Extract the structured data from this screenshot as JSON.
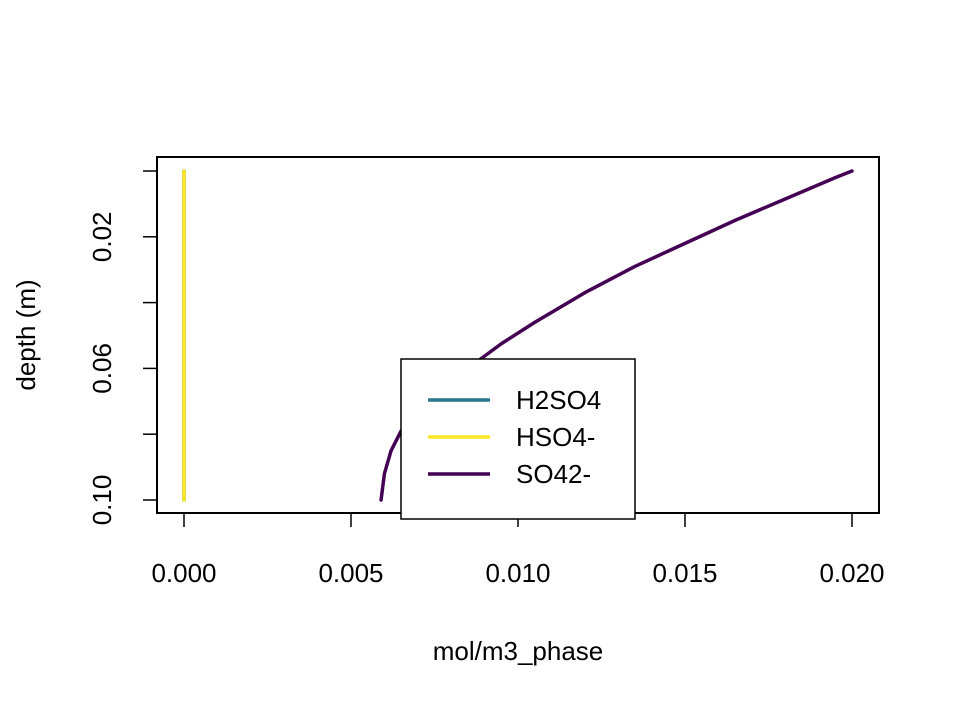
{
  "chart_data": {
    "type": "line",
    "title": "",
    "xlabel": "mol/m3_phase",
    "ylabel": "depth (m)",
    "xlim": [
      0.0,
      0.02
    ],
    "ylim": [
      0.1,
      0.0
    ],
    "y_inverted": true,
    "x_ticks": [
      "0.000",
      "0.005",
      "0.010",
      "0.015",
      "0.020"
    ],
    "x_tick_values": [
      0.0,
      0.005,
      0.01,
      0.015,
      0.02
    ],
    "y_ticks": [
      "0.02",
      "0.06",
      "0.10"
    ],
    "y_tick_values": [
      0.02,
      0.06,
      0.1
    ],
    "y_minor_tick_values": [
      0.0,
      0.04,
      0.08
    ],
    "grid": false,
    "legend_position": "bottom-center",
    "series": [
      {
        "name": "H2SO4",
        "color": "#2a788e",
        "x": [
          0.0,
          0.0
        ],
        "y": [
          0.0,
          0.1
        ]
      },
      {
        "name": "HSO4-",
        "color": "#fde725",
        "x": [
          0.0,
          0.0
        ],
        "y": [
          0.0,
          0.1
        ]
      },
      {
        "name": "SO42-",
        "color": "#440154",
        "x": [
          0.02,
          0.0195,
          0.018,
          0.0165,
          0.015,
          0.0135,
          0.012,
          0.0105,
          0.0095,
          0.0085,
          0.0077,
          0.007,
          0.0065,
          0.0062,
          0.006,
          0.0059
        ],
        "y": [
          0.0,
          0.002,
          0.0085,
          0.015,
          0.022,
          0.029,
          0.037,
          0.046,
          0.0525,
          0.06,
          0.066,
          0.0725,
          0.079,
          0.085,
          0.092,
          0.1
        ]
      }
    ]
  }
}
